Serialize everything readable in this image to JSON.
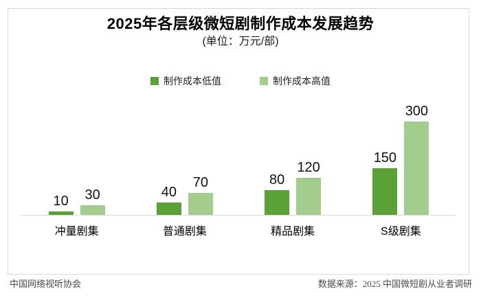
{
  "chart_data": {
    "type": "bar",
    "title": "2025年各层级微短剧制作成本发展趋势",
    "subtitle": "(单位：万元/部)",
    "unit": "万元/部",
    "categories": [
      "冲量剧集",
      "普通剧集",
      "精品剧集",
      "S级剧集"
    ],
    "series": [
      {
        "name": "制作成本低值",
        "color": "#5AA236",
        "values": [
          10,
          40,
          80,
          150
        ]
      },
      {
        "name": "制作成本高值",
        "color": "#A3CD8C",
        "values": [
          30,
          70,
          120,
          300
        ]
      }
    ],
    "ylim": [
      0,
      300
    ],
    "grid": false,
    "legend_position": "top-center",
    "data_labels": true
  },
  "footer": {
    "left": "中国网络视听协会",
    "right": "数据来源：2025 中国微短剧从业者调研"
  },
  "colors": {
    "bar_low": "#5AA236",
    "bar_high": "#A3CD8C",
    "axis_line": "#D9D9D9",
    "frame_border": "#D9D9D9",
    "title_text": "#000000",
    "footer_text": "#4A4A4A"
  }
}
